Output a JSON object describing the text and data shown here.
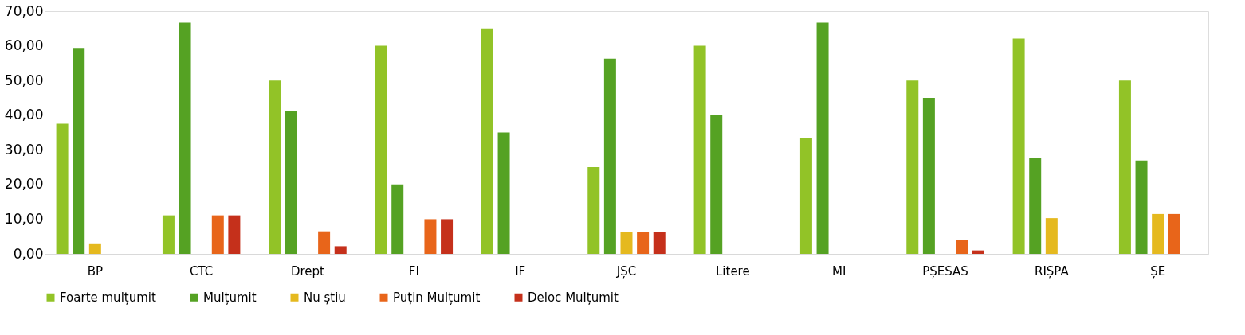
{
  "chart_data": {
    "type": "bar",
    "categories": [
      "BP",
      "CTC",
      "Drept",
      "FI",
      "IF",
      "JȘC",
      "Litere",
      "MI",
      "PȘESAS",
      "RIȘPA",
      "ȘE"
    ],
    "series": [
      {
        "name": "Foarte mulțumit",
        "color": "#92c327",
        "values": [
          37.5,
          11.1,
          50,
          60,
          65,
          25,
          60,
          33.3,
          50,
          62.1,
          50
        ]
      },
      {
        "name": "Mulțumit",
        "color": "#55a223",
        "values": [
          59.4,
          66.7,
          41.3,
          20,
          35,
          56.3,
          40,
          66.7,
          45,
          27.6,
          26.9
        ]
      },
      {
        "name": "Nu știu",
        "color": "#e5b91f",
        "values": [
          2.8,
          null,
          null,
          null,
          null,
          6.3,
          null,
          null,
          null,
          10.3,
          11.5
        ]
      },
      {
        "name": "Puțin Mulțumit",
        "color": "#e8651a",
        "values": [
          null,
          11.1,
          6.5,
          10,
          null,
          6.3,
          null,
          null,
          4,
          null,
          11.5
        ]
      },
      {
        "name": "Deloc Mulțumit",
        "color": "#c5301b",
        "values": [
          null,
          11.1,
          2.2,
          10,
          null,
          6.3,
          null,
          null,
          1,
          null,
          null
        ]
      }
    ],
    "ylim": [
      0,
      70
    ],
    "yticks": [
      {
        "value": 0,
        "label": "0,00"
      },
      {
        "value": 10,
        "label": "10,00"
      },
      {
        "value": 20,
        "label": "20,00"
      },
      {
        "value": 30,
        "label": "30,00"
      },
      {
        "value": 40,
        "label": "40,00"
      },
      {
        "value": 50,
        "label": "50,00"
      },
      {
        "value": 60,
        "label": "60,00"
      },
      {
        "value": 70,
        "label": "70,00"
      }
    ],
    "grid": false,
    "legend": "bottom"
  }
}
